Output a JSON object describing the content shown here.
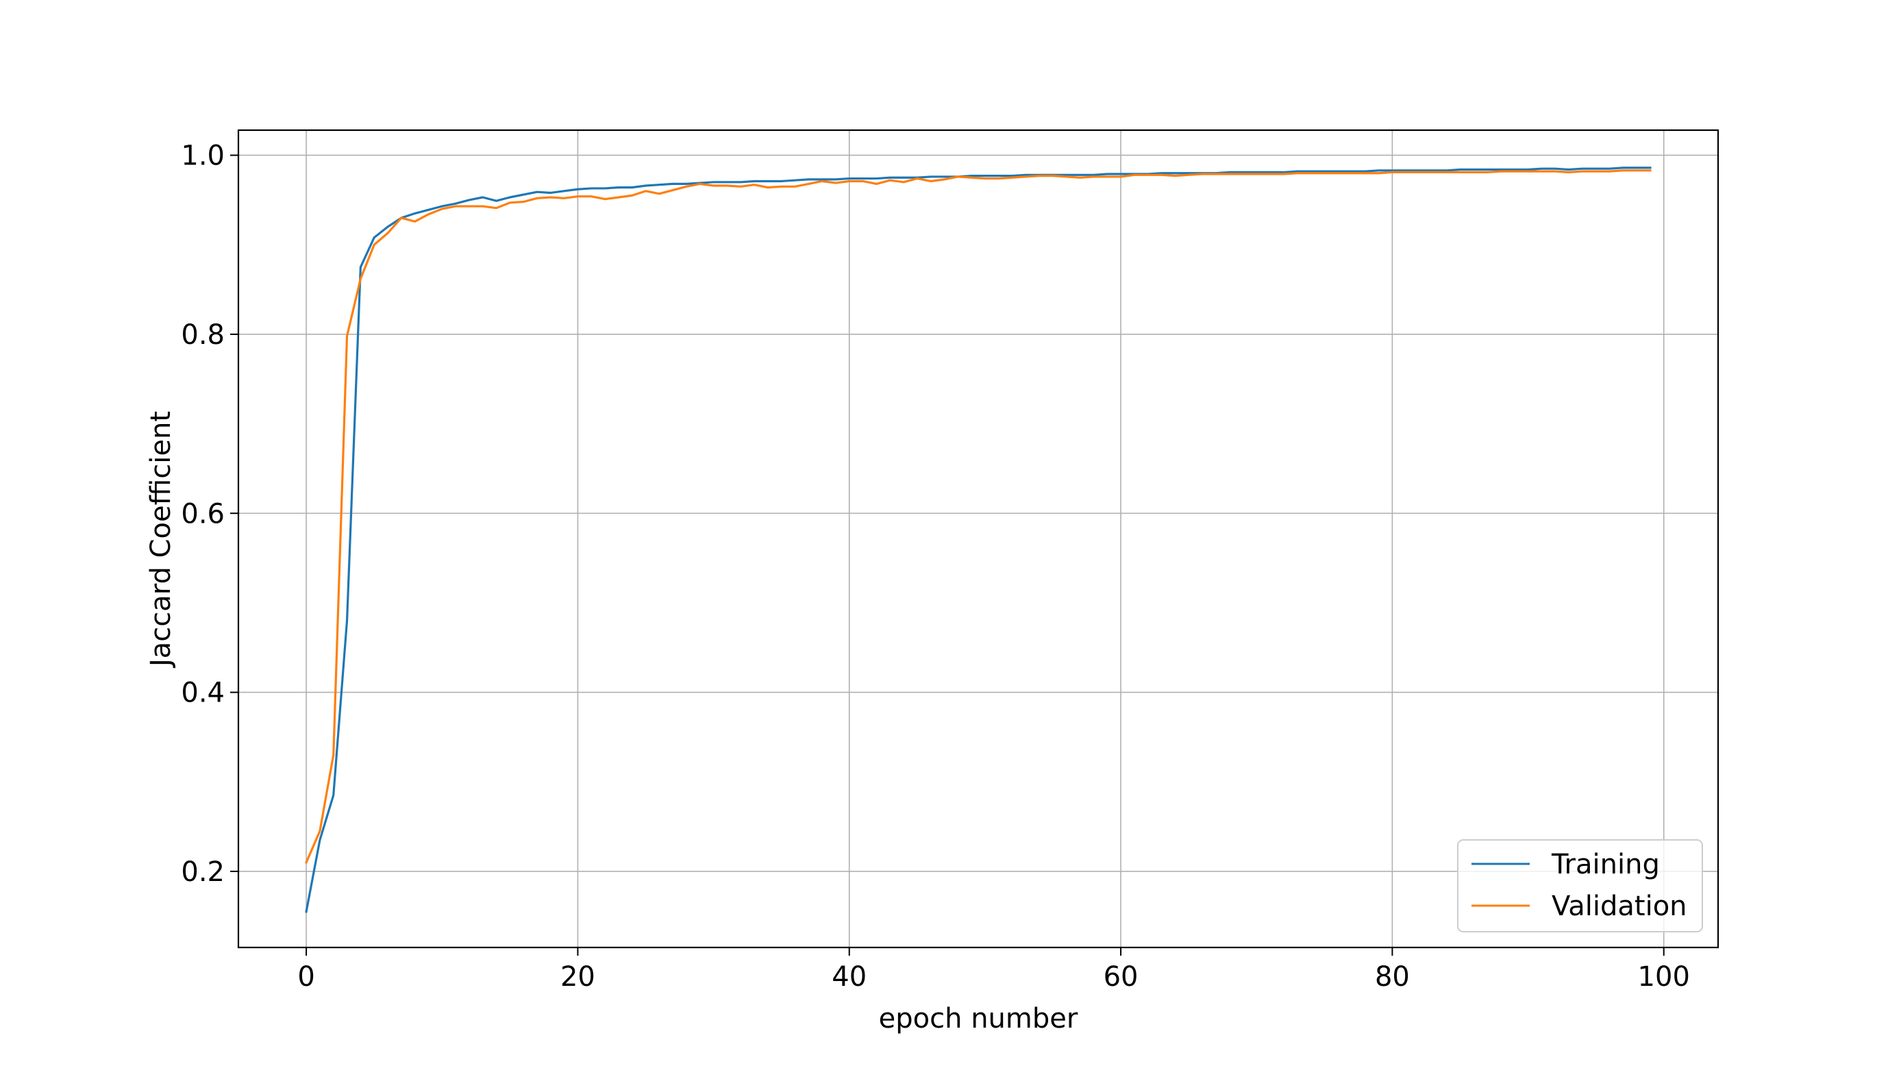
{
  "chart_data": {
    "type": "line",
    "xlabel": "epoch number",
    "ylabel": "Jaccard Coefficient",
    "xlim": [
      -5,
      104
    ],
    "ylim": [
      0.115,
      1.028
    ],
    "x_ticks": [
      0,
      20,
      40,
      60,
      80,
      100
    ],
    "y_ticks": [
      0.2,
      0.4,
      0.6,
      0.8,
      1.0
    ],
    "x_tick_labels": [
      "0",
      "20",
      "40",
      "60",
      "80",
      "100"
    ],
    "y_tick_labels": [
      "0.2",
      "0.4",
      "0.6",
      "0.8",
      "1.0"
    ],
    "grid": true,
    "legend_position": "lower-right",
    "x": [
      0,
      1,
      2,
      3,
      4,
      5,
      6,
      7,
      8,
      9,
      10,
      11,
      12,
      13,
      14,
      15,
      16,
      17,
      18,
      19,
      20,
      21,
      22,
      23,
      24,
      25,
      26,
      27,
      28,
      29,
      30,
      31,
      32,
      33,
      34,
      35,
      36,
      37,
      38,
      39,
      40,
      41,
      42,
      43,
      44,
      45,
      46,
      47,
      48,
      49,
      50,
      51,
      52,
      53,
      54,
      55,
      56,
      57,
      58,
      59,
      60,
      61,
      62,
      63,
      64,
      65,
      66,
      67,
      68,
      69,
      70,
      71,
      72,
      73,
      74,
      75,
      76,
      77,
      78,
      79,
      80,
      81,
      82,
      83,
      84,
      85,
      86,
      87,
      88,
      89,
      90,
      91,
      92,
      93,
      94,
      95,
      96,
      97,
      98,
      99
    ],
    "series": [
      {
        "name": "Training",
        "color": "#1f77b4",
        "values": [
          0.155,
          0.235,
          0.285,
          0.48,
          0.875,
          0.908,
          0.92,
          0.93,
          0.935,
          0.939,
          0.943,
          0.946,
          0.95,
          0.953,
          0.949,
          0.953,
          0.956,
          0.959,
          0.958,
          0.96,
          0.962,
          0.963,
          0.963,
          0.964,
          0.964,
          0.966,
          0.967,
          0.968,
          0.968,
          0.969,
          0.97,
          0.97,
          0.97,
          0.971,
          0.971,
          0.971,
          0.972,
          0.973,
          0.973,
          0.973,
          0.974,
          0.974,
          0.974,
          0.975,
          0.975,
          0.975,
          0.976,
          0.976,
          0.976,
          0.977,
          0.977,
          0.977,
          0.977,
          0.978,
          0.978,
          0.978,
          0.978,
          0.978,
          0.978,
          0.979,
          0.979,
          0.979,
          0.979,
          0.98,
          0.98,
          0.98,
          0.98,
          0.98,
          0.981,
          0.981,
          0.981,
          0.981,
          0.981,
          0.982,
          0.982,
          0.982,
          0.982,
          0.982,
          0.982,
          0.983,
          0.983,
          0.983,
          0.983,
          0.983,
          0.983,
          0.984,
          0.984,
          0.984,
          0.984,
          0.984,
          0.984,
          0.985,
          0.985,
          0.984,
          0.985,
          0.985,
          0.985,
          0.986,
          0.986,
          0.986
        ]
      },
      {
        "name": "Validation",
        "color": "#ff7f0e",
        "values": [
          0.21,
          0.245,
          0.33,
          0.798,
          0.862,
          0.9,
          0.913,
          0.93,
          0.926,
          0.934,
          0.94,
          0.943,
          0.943,
          0.943,
          0.941,
          0.947,
          0.948,
          0.952,
          0.953,
          0.952,
          0.954,
          0.954,
          0.951,
          0.953,
          0.955,
          0.96,
          0.957,
          0.961,
          0.965,
          0.968,
          0.966,
          0.966,
          0.965,
          0.967,
          0.964,
          0.965,
          0.965,
          0.968,
          0.971,
          0.969,
          0.971,
          0.971,
          0.968,
          0.972,
          0.97,
          0.974,
          0.971,
          0.973,
          0.976,
          0.975,
          0.974,
          0.974,
          0.975,
          0.976,
          0.977,
          0.977,
          0.976,
          0.975,
          0.976,
          0.976,
          0.976,
          0.978,
          0.978,
          0.978,
          0.977,
          0.978,
          0.979,
          0.979,
          0.979,
          0.979,
          0.979,
          0.979,
          0.979,
          0.98,
          0.98,
          0.98,
          0.98,
          0.98,
          0.98,
          0.98,
          0.981,
          0.981,
          0.981,
          0.981,
          0.981,
          0.981,
          0.981,
          0.981,
          0.982,
          0.982,
          0.982,
          0.982,
          0.982,
          0.981,
          0.982,
          0.982,
          0.982,
          0.983,
          0.983,
          0.983
        ]
      }
    ],
    "colors": {
      "axes": "#000000",
      "grid": "#b0b0b0",
      "legend_border": "#cccccc",
      "background": "#ffffff"
    }
  }
}
